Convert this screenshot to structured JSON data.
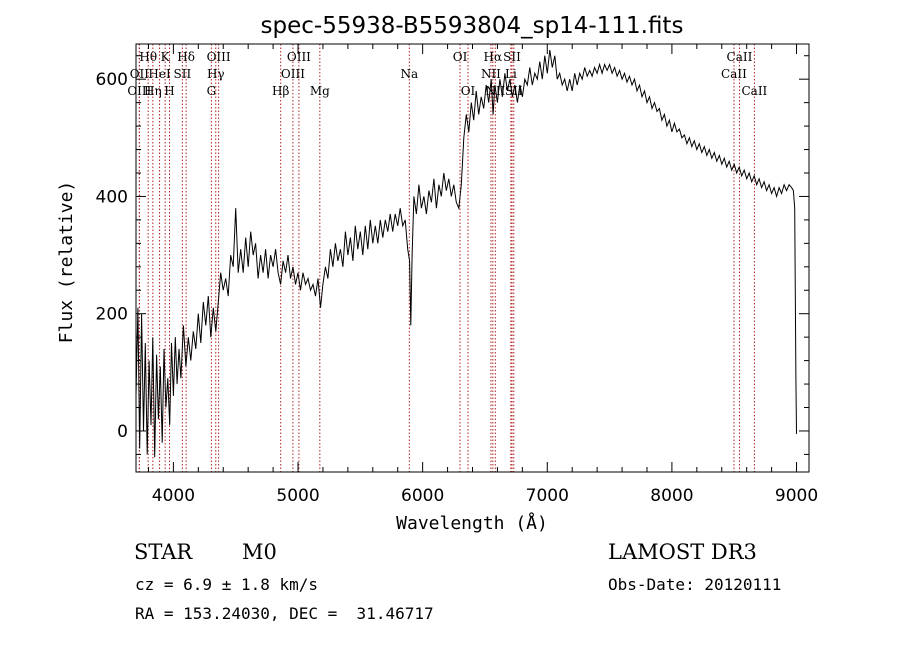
{
  "chart_data": {
    "type": "line",
    "title": "spec-55938-B5593804_sp14-111.fits",
    "xlabel": "Wavelength (Å)",
    "ylabel": "Flux (relative)",
    "xlim": [
      3700,
      9100
    ],
    "ylim": [
      -70,
      660
    ],
    "xticks": [
      4000,
      5000,
      6000,
      7000,
      8000,
      9000
    ],
    "yticks": [
      0,
      200,
      400,
      600
    ],
    "series": [
      {
        "name": "spectrum",
        "color": "#000000",
        "points": [
          [
            3700,
            60
          ],
          [
            3715,
            210
          ],
          [
            3730,
            -30
          ],
          [
            3745,
            200
          ],
          [
            3760,
            0
          ],
          [
            3775,
            150
          ],
          [
            3790,
            -40
          ],
          [
            3805,
            120
          ],
          [
            3820,
            10
          ],
          [
            3835,
            160
          ],
          [
            3850,
            -45
          ],
          [
            3865,
            130
          ],
          [
            3880,
            20
          ],
          [
            3895,
            110
          ],
          [
            3910,
            -20
          ],
          [
            3925,
            140
          ],
          [
            3940,
            40
          ],
          [
            3955,
            90
          ],
          [
            3970,
            10
          ],
          [
            3985,
            150
          ],
          [
            4000,
            60
          ],
          [
            4015,
            160
          ],
          [
            4030,
            80
          ],
          [
            4045,
            140
          ],
          [
            4060,
            90
          ],
          [
            4080,
            180
          ],
          [
            4100,
            110
          ],
          [
            4120,
            160
          ],
          [
            4140,
            120
          ],
          [
            4160,
            170
          ],
          [
            4180,
            140
          ],
          [
            4200,
            200
          ],
          [
            4220,
            150
          ],
          [
            4240,
            220
          ],
          [
            4260,
            180
          ],
          [
            4280,
            230
          ],
          [
            4300,
            160
          ],
          [
            4320,
            210
          ],
          [
            4340,
            170
          ],
          [
            4360,
            220
          ],
          [
            4380,
            270
          ],
          [
            4400,
            240
          ],
          [
            4420,
            260
          ],
          [
            4440,
            230
          ],
          [
            4460,
            300
          ],
          [
            4480,
            280
          ],
          [
            4500,
            380
          ],
          [
            4520,
            270
          ],
          [
            4540,
            310
          ],
          [
            4560,
            270
          ],
          [
            4580,
            330
          ],
          [
            4600,
            280
          ],
          [
            4620,
            340
          ],
          [
            4640,
            300
          ],
          [
            4660,
            320
          ],
          [
            4680,
            260
          ],
          [
            4700,
            300
          ],
          [
            4720,
            270
          ],
          [
            4740,
            310
          ],
          [
            4760,
            260
          ],
          [
            4780,
            300
          ],
          [
            4800,
            280
          ],
          [
            4820,
            310
          ],
          [
            4840,
            270
          ],
          [
            4860,
            250
          ],
          [
            4880,
            290
          ],
          [
            4900,
            270
          ],
          [
            4920,
            300
          ],
          [
            4940,
            260
          ],
          [
            4960,
            280
          ],
          [
            4980,
            250
          ],
          [
            5000,
            270
          ],
          [
            5020,
            240
          ],
          [
            5040,
            270
          ],
          [
            5060,
            250
          ],
          [
            5080,
            260
          ],
          [
            5100,
            240
          ],
          [
            5120,
            250
          ],
          [
            5140,
            230
          ],
          [
            5160,
            260
          ],
          [
            5180,
            210
          ],
          [
            5200,
            250
          ],
          [
            5220,
            280
          ],
          [
            5240,
            260
          ],
          [
            5260,
            310
          ],
          [
            5280,
            280
          ],
          [
            5300,
            320
          ],
          [
            5320,
            290
          ],
          [
            5340,
            310
          ],
          [
            5360,
            280
          ],
          [
            5380,
            340
          ],
          [
            5400,
            300
          ],
          [
            5420,
            330
          ],
          [
            5440,
            290
          ],
          [
            5460,
            350
          ],
          [
            5480,
            310
          ],
          [
            5500,
            340
          ],
          [
            5520,
            300
          ],
          [
            5540,
            350
          ],
          [
            5560,
            310
          ],
          [
            5580,
            360
          ],
          [
            5600,
            320
          ],
          [
            5620,
            350
          ],
          [
            5640,
            320
          ],
          [
            5660,
            360
          ],
          [
            5680,
            330
          ],
          [
            5700,
            360
          ],
          [
            5720,
            340
          ],
          [
            5740,
            370
          ],
          [
            5760,
            340
          ],
          [
            5780,
            370
          ],
          [
            5800,
            350
          ],
          [
            5820,
            380
          ],
          [
            5840,
            350
          ],
          [
            5860,
            360
          ],
          [
            5880,
            310
          ],
          [
            5895,
            290
          ],
          [
            5905,
            180
          ],
          [
            5915,
            300
          ],
          [
            5930,
            400
          ],
          [
            5950,
            370
          ],
          [
            5970,
            420
          ],
          [
            5990,
            380
          ],
          [
            6010,
            400
          ],
          [
            6030,
            370
          ],
          [
            6050,
            410
          ],
          [
            6070,
            390
          ],
          [
            6090,
            430
          ],
          [
            6110,
            380
          ],
          [
            6130,
            420
          ],
          [
            6150,
            400
          ],
          [
            6170,
            440
          ],
          [
            6190,
            410
          ],
          [
            6210,
            430
          ],
          [
            6230,
            400
          ],
          [
            6250,
            420
          ],
          [
            6270,
            390
          ],
          [
            6290,
            380
          ],
          [
            6310,
            420
          ],
          [
            6330,
            500
          ],
          [
            6350,
            540
          ],
          [
            6370,
            510
          ],
          [
            6390,
            560
          ],
          [
            6410,
            530
          ],
          [
            6430,
            580
          ],
          [
            6450,
            540
          ],
          [
            6470,
            570
          ],
          [
            6490,
            550
          ],
          [
            6510,
            590
          ],
          [
            6530,
            560
          ],
          [
            6550,
            600
          ],
          [
            6565,
            540
          ],
          [
            6580,
            590
          ],
          [
            6600,
            560
          ],
          [
            6620,
            600
          ],
          [
            6640,
            570
          ],
          [
            6660,
            610
          ],
          [
            6680,
            580
          ],
          [
            6700,
            600
          ],
          [
            6720,
            570
          ],
          [
            6740,
            590
          ],
          [
            6760,
            560
          ],
          [
            6780,
            590
          ],
          [
            6800,
            570
          ],
          [
            6820,
            600
          ],
          [
            6840,
            590
          ],
          [
            6860,
            620
          ],
          [
            6880,
            590
          ],
          [
            6900,
            610
          ],
          [
            6920,
            600
          ],
          [
            6940,
            630
          ],
          [
            6960,
            600
          ],
          [
            6980,
            640
          ],
          [
            7000,
            610
          ],
          [
            7020,
            650
          ],
          [
            7040,
            620
          ],
          [
            7060,
            640
          ],
          [
            7080,
            600
          ],
          [
            7100,
            610
          ],
          [
            7120,
            590
          ],
          [
            7140,
            600
          ],
          [
            7160,
            580
          ],
          [
            7180,
            600
          ],
          [
            7200,
            580
          ],
          [
            7220,
            610
          ],
          [
            7240,
            590
          ],
          [
            7260,
            610
          ],
          [
            7280,
            600
          ],
          [
            7300,
            620
          ],
          [
            7320,
            605
          ],
          [
            7340,
            615
          ],
          [
            7360,
            605
          ],
          [
            7380,
            620
          ],
          [
            7400,
            610
          ],
          [
            7420,
            625
          ],
          [
            7440,
            610
          ],
          [
            7460,
            625
          ],
          [
            7480,
            615
          ],
          [
            7500,
            625
          ],
          [
            7520,
            610
          ],
          [
            7540,
            620
          ],
          [
            7560,
            605
          ],
          [
            7580,
            615
          ],
          [
            7600,
            600
          ],
          [
            7620,
            610
          ],
          [
            7640,
            595
          ],
          [
            7660,
            605
          ],
          [
            7680,
            590
          ],
          [
            7700,
            600
          ],
          [
            7720,
            580
          ],
          [
            7740,
            590
          ],
          [
            7760,
            570
          ],
          [
            7780,
            580
          ],
          [
            7800,
            560
          ],
          [
            7820,
            570
          ],
          [
            7840,
            550
          ],
          [
            7860,
            560
          ],
          [
            7880,
            545
          ],
          [
            7900,
            550
          ],
          [
            7920,
            530
          ],
          [
            7940,
            540
          ],
          [
            7960,
            520
          ],
          [
            7980,
            530
          ],
          [
            8000,
            510
          ],
          [
            8020,
            525
          ],
          [
            8040,
            510
          ],
          [
            8060,
            515
          ],
          [
            8080,
            500
          ],
          [
            8100,
            505
          ],
          [
            8120,
            490
          ],
          [
            8140,
            500
          ],
          [
            8160,
            485
          ],
          [
            8180,
            495
          ],
          [
            8200,
            480
          ],
          [
            8220,
            490
          ],
          [
            8240,
            475
          ],
          [
            8260,
            485
          ],
          [
            8280,
            470
          ],
          [
            8300,
            480
          ],
          [
            8320,
            465
          ],
          [
            8340,
            475
          ],
          [
            8360,
            460
          ],
          [
            8380,
            470
          ],
          [
            8400,
            455
          ],
          [
            8420,
            465
          ],
          [
            8440,
            450
          ],
          [
            8460,
            460
          ],
          [
            8480,
            445
          ],
          [
            8500,
            455
          ],
          [
            8520,
            440
          ],
          [
            8540,
            450
          ],
          [
            8560,
            435
          ],
          [
            8580,
            445
          ],
          [
            8600,
            430
          ],
          [
            8620,
            440
          ],
          [
            8640,
            425
          ],
          [
            8660,
            435
          ],
          [
            8680,
            420
          ],
          [
            8700,
            430
          ],
          [
            8720,
            415
          ],
          [
            8740,
            425
          ],
          [
            8760,
            410
          ],
          [
            8780,
            420
          ],
          [
            8800,
            405
          ],
          [
            8820,
            415
          ],
          [
            8840,
            400
          ],
          [
            8860,
            415
          ],
          [
            8880,
            405
          ],
          [
            8900,
            420
          ],
          [
            8920,
            410
          ],
          [
            8940,
            420
          ],
          [
            8960,
            415
          ],
          [
            8975,
            410
          ],
          [
            8985,
            380
          ],
          [
            8995,
            90
          ],
          [
            9000,
            -5
          ]
        ]
      }
    ],
    "lines": [
      {
        "label": "Hθ",
        "wl": 3798,
        "row": 0
      },
      {
        "label": "K",
        "wl": 3934,
        "row": 0
      },
      {
        "label": "Hδ",
        "wl": 4102,
        "row": 0
      },
      {
        "label": "OIII",
        "wl": 4363,
        "row": 0
      },
      {
        "label": "OIII",
        "wl": 5007,
        "row": 0
      },
      {
        "label": "OI",
        "wl": 6300,
        "row": 0
      },
      {
        "label": "Hα",
        "wl": 6563,
        "row": 0
      },
      {
        "label": "SII",
        "wl": 6717,
        "row": 0
      },
      {
        "label": "CaII",
        "wl": 8542,
        "row": 0
      },
      {
        "label": "OII",
        "wl": 3727,
        "row": 1
      },
      {
        "label": "HeI",
        "wl": 3889,
        "row": 1
      },
      {
        "label": "SII",
        "wl": 4072,
        "row": 1
      },
      {
        "label": "Hγ",
        "wl": 4340,
        "row": 1
      },
      {
        "label": "OIII",
        "wl": 4959,
        "row": 1
      },
      {
        "label": "Na",
        "wl": 5893,
        "row": 1
      },
      {
        "label": "NII",
        "wl": 6548,
        "row": 1
      },
      {
        "label": "Li",
        "wl": 6708,
        "row": 1
      },
      {
        "label": "CaII",
        "wl": 8498,
        "row": 1
      },
      {
        "label": "OIII",
        "wl": 3727,
        "row": 2
      },
      {
        "label": "Hη",
        "wl": 3835,
        "row": 2
      },
      {
        "label": "H",
        "wl": 3969,
        "row": 2
      },
      {
        "label": "G",
        "wl": 4305,
        "row": 2
      },
      {
        "label": "Hβ",
        "wl": 4861,
        "row": 2
      },
      {
        "label": "Mg",
        "wl": 5175,
        "row": 2
      },
      {
        "label": "OI",
        "wl": 6364,
        "row": 2
      },
      {
        "label": "NII",
        "wl": 6583,
        "row": 2
      },
      {
        "label": "SII",
        "wl": 6731,
        "row": 2
      },
      {
        "label": "CaII",
        "wl": 8662,
        "row": 2
      }
    ],
    "line_color": "#b22222"
  },
  "info": {
    "object_class": "STAR",
    "subclass": "M0",
    "survey": "LAMOST DR3",
    "cz": "cz = 6.9 ± 1.8 km/s",
    "obs_date": "Obs-Date: 20120111",
    "coords": "RA = 153.24030, DEC =  31.46717"
  }
}
